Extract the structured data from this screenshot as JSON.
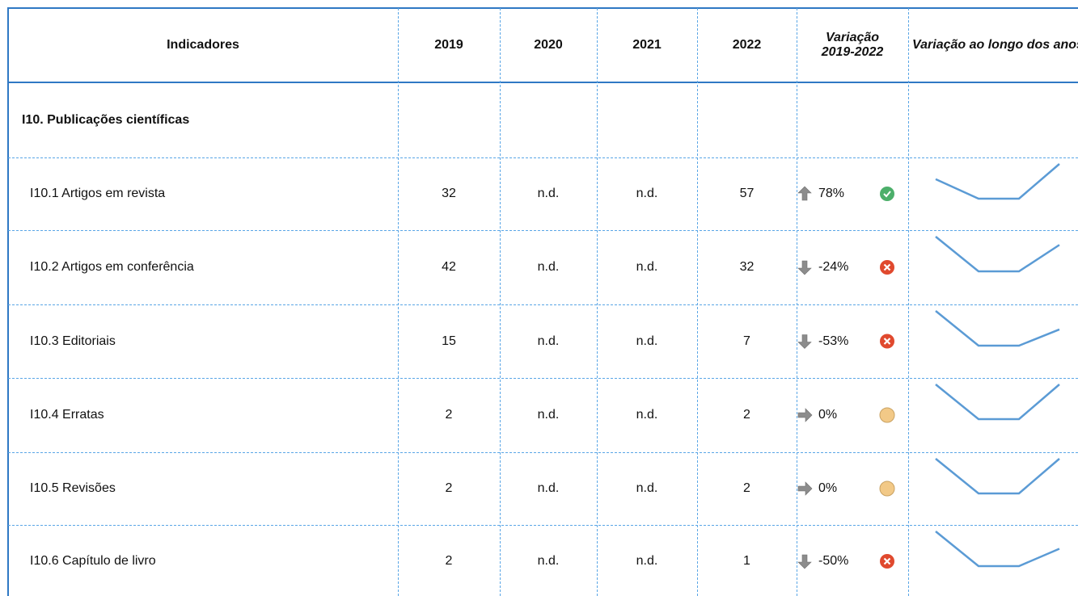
{
  "header": [
    "Indicadores",
    "2019",
    "2020",
    "2021",
    "2022",
    "Variação 2019-2022",
    "Variação ao longo dos anos"
  ],
  "section": "I10. Publicações científicas",
  "rows": [
    {
      "label": "I10.1 Artigos em revista",
      "cells": [
        32,
        "n.d.",
        "n.d.",
        57
      ],
      "variation": {
        "value": 78,
        "label": "78%"
      }
    },
    {
      "label": "I10.2 Artigos em conferência",
      "cells": [
        42,
        "n.d.",
        "n.d.",
        32
      ],
      "variation": {
        "value": -24,
        "label": "-24%"
      }
    },
    {
      "label": "I10.3 Editoriais",
      "cells": [
        15,
        "n.d.",
        "n.d.",
        7
      ],
      "variation": {
        "value": -53,
        "label": "-53%"
      }
    },
    {
      "label": "I10.4 Erratas",
      "cells": [
        2,
        "n.d.",
        "n.d.",
        2
      ],
      "variation": {
        "value": 0,
        "label": "0%"
      }
    },
    {
      "label": "I10.5 Revisões",
      "cells": [
        2,
        "n.d.",
        "n.d.",
        2
      ],
      "variation": {
        "value": 0,
        "label": "0%"
      }
    },
    {
      "label": "I10.6 Capítulo de livro",
      "cells": [
        2,
        "n.d.",
        "n.d.",
        1
      ],
      "variation": {
        "value": -50,
        "label": "-50%"
      }
    }
  ]
}
